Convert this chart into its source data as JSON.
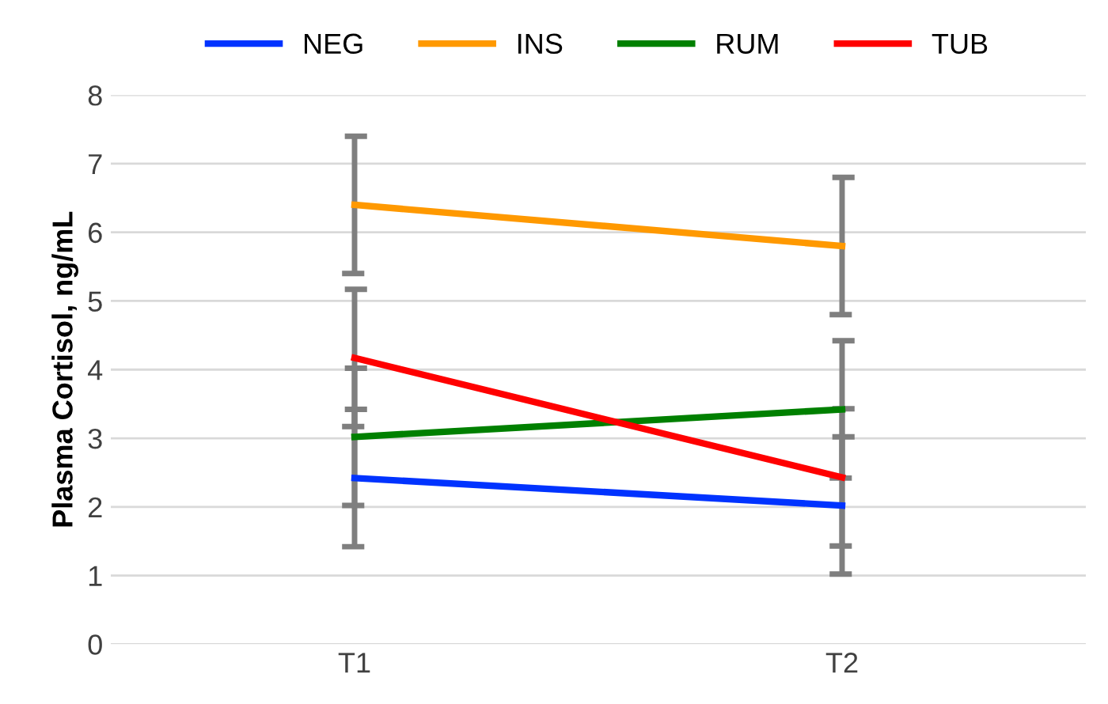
{
  "chart_data": {
    "type": "line",
    "ylabel": "Plasma Cortisol, ng/mL",
    "categories": [
      "T1",
      "T2"
    ],
    "series": [
      {
        "name": "NEG",
        "color": "#0033ff",
        "values": [
          2.42,
          2.02
        ],
        "errors": [
          1,
          1
        ]
      },
      {
        "name": "INS",
        "color": "#ff9900",
        "values": [
          6.4,
          5.8
        ],
        "errors": [
          1,
          1
        ]
      },
      {
        "name": "RUM",
        "color": "#008000",
        "values": [
          3.02,
          3.42
        ],
        "errors": [
          1,
          1
        ]
      },
      {
        "name": "TUB",
        "color": "#ff0000",
        "values": [
          4.17,
          2.43
        ],
        "errors": [
          1,
          1
        ]
      }
    ],
    "ylim": [
      0,
      8
    ],
    "yticks": [
      0,
      1,
      2,
      3,
      4,
      5,
      6,
      7,
      8
    ],
    "grid": "y",
    "legend": "top",
    "marker": "none"
  }
}
